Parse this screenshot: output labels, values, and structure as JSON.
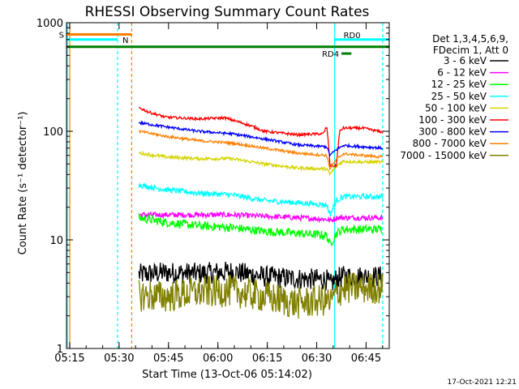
{
  "page": {
    "background": "#ffffff",
    "foreground": "#000000"
  },
  "chart_data": {
    "type": "line",
    "title": "RHESSI Observing Summary Count Rates",
    "xlabel": "Start Time (13-Oct-06 05:14:02)",
    "ylabel": "Count Rate (s⁻¹ detector⁻¹)",
    "x_unit": "minutes since 05:14:02",
    "xlim": [
      0,
      98
    ],
    "ylim": [
      1,
      1000
    ],
    "yscale": "log",
    "grid": false,
    "legend_position": "right",
    "x_ticks": [
      {
        "label": "05:15",
        "x": 0.97
      },
      {
        "label": "05:30",
        "x": 15.97
      },
      {
        "label": "05:45",
        "x": 30.97
      },
      {
        "label": "06:00",
        "x": 45.97
      },
      {
        "label": "06:15",
        "x": 60.97
      },
      {
        "label": "06:30",
        "x": 75.97
      },
      {
        "label": "06:45",
        "x": 90.97
      }
    ],
    "y_ticks": [
      {
        "label": "1",
        "y": 1
      },
      {
        "label": "10",
        "y": 10
      },
      {
        "label": "100",
        "y": 100
      },
      {
        "label": "1000",
        "y": 1000
      }
    ],
    "legend_header": [
      "Det 1,3,4,5,6,9,",
      "FDecim 1, Att 0"
    ],
    "series": [
      {
        "name": "3 - 6 keV",
        "color": "#000000",
        "noise": 0.1,
        "x": [
          22,
          30,
          40,
          50,
          60,
          70,
          79,
          80,
          82,
          84,
          90,
          96
        ],
        "y": [
          4.8,
          5.0,
          4.9,
          5.1,
          4.6,
          4.4,
          4.3,
          3.8,
          4.4,
          4.6,
          4.6,
          4.6
        ]
      },
      {
        "name": "6 - 12 keV",
        "color": "#ff00ff",
        "noise": 0.025,
        "x": [
          22,
          30,
          40,
          50,
          60,
          70,
          79,
          80,
          82,
          84,
          90,
          96
        ],
        "y": [
          17,
          17,
          17,
          17,
          16.5,
          16,
          15.5,
          15,
          16,
          16,
          16,
          16
        ]
      },
      {
        "name": "12 - 25 keV",
        "color": "#00ff00",
        "noise": 0.04,
        "x": [
          22,
          30,
          40,
          50,
          60,
          70,
          79,
          80,
          82,
          84,
          90,
          96
        ],
        "y": [
          16,
          14.5,
          13.5,
          13,
          12,
          11.5,
          11,
          9,
          11.5,
          12.5,
          12.5,
          12.5
        ]
      },
      {
        "name": "25 - 50 keV",
        "color": "#00ffff",
        "noise": 0.025,
        "x": [
          22,
          30,
          40,
          50,
          60,
          70,
          79,
          80,
          82,
          84,
          90,
          96
        ],
        "y": [
          32,
          29,
          27,
          26,
          23,
          22,
          21,
          17,
          23,
          25,
          25,
          25
        ]
      },
      {
        "name": "50 - 100 keV",
        "color": "#d4d400",
        "noise": 0.015,
        "x": [
          22,
          30,
          40,
          50,
          60,
          70,
          79,
          80,
          82,
          84,
          90,
          96
        ],
        "y": [
          63,
          58,
          56,
          56,
          50,
          46,
          45,
          40,
          48,
          53,
          52,
          52
        ]
      },
      {
        "name": "100 - 300 keV",
        "color": "#ff0000",
        "noise": 0.012,
        "x": [
          22,
          25,
          30,
          40,
          48,
          55,
          60,
          70,
          78,
          79,
          80,
          82,
          83,
          84,
          90,
          96
        ],
        "y": [
          165,
          150,
          135,
          130,
          133,
          115,
          100,
          93,
          95,
          110,
          48,
          48,
          100,
          107,
          107,
          98
        ]
      },
      {
        "name": "300 - 800 keV",
        "color": "#0000ff",
        "noise": 0.012,
        "x": [
          22,
          30,
          40,
          50,
          60,
          70,
          79,
          80,
          82,
          84,
          90,
          96
        ],
        "y": [
          120,
          110,
          100,
          95,
          85,
          75,
          72,
          60,
          68,
          74,
          72,
          70
        ]
      },
      {
        "name": "800 - 7000 keV",
        "color": "#ff8000",
        "noise": 0.012,
        "x": [
          22,
          30,
          40,
          50,
          60,
          70,
          79,
          80,
          82,
          84,
          90,
          96
        ],
        "y": [
          100,
          90,
          82,
          78,
          70,
          63,
          60,
          45,
          55,
          62,
          60,
          58
        ]
      },
      {
        "name": "7000 - 15000 keV",
        "color": "#808000",
        "noise": 0.15,
        "x": [
          22,
          30,
          40,
          50,
          60,
          70,
          79,
          80,
          82,
          84,
          90,
          96
        ],
        "y": [
          3.1,
          3.0,
          3.3,
          3.4,
          3.0,
          2.6,
          2.8,
          2.6,
          3.2,
          3.6,
          3.6,
          3.6
        ]
      }
    ],
    "flags": [
      {
        "name": "S",
        "color": "#ff8000",
        "x": [
          0,
          19.8
        ],
        "y": 780,
        "label_pos": "left"
      },
      {
        "name": "N",
        "color": "#00ffff",
        "x": [
          0,
          15.5
        ],
        "y": 700,
        "label_pos": "right"
      },
      {
        "name": "RD0",
        "color": "#00ffff",
        "x": [
          81.4,
          98
        ],
        "y": 700,
        "label_pos": "above"
      },
      {
        "name": "RD4",
        "color": "#008000",
        "x": [
          83.5,
          86.5
        ],
        "y": 520,
        "label_pos": "left"
      }
    ],
    "saa_line": {
      "color": "#008000",
      "x": [
        0,
        98
      ],
      "y": 600
    },
    "vertical_lines": [
      {
        "x": 0.3,
        "color": "#00ffff",
        "style": "solid"
      },
      {
        "x": 1.0,
        "color": "#ff8000",
        "style": "solid"
      },
      {
        "x": 15.5,
        "color": "#00ffff",
        "style": "dashed"
      },
      {
        "x": 19.8,
        "color": "#ff8000",
        "style": "dashed"
      },
      {
        "x": 81.4,
        "color": "#00ffff",
        "style": "solid"
      },
      {
        "x": 96.0,
        "color": "#00ffff",
        "style": "dashed"
      }
    ]
  },
  "footer_stamp": "17-Oct-2021 12:21"
}
